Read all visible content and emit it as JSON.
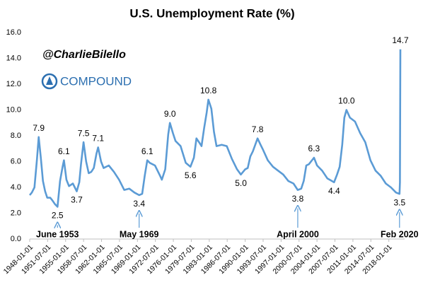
{
  "chart_data": {
    "type": "line",
    "title": "U.S. Unemployment Rate (%)",
    "handle": "@CharlieBilello",
    "brand": "COMPOUND",
    "color": "#5b9bd5",
    "x": [
      "1948-01-01",
      "1948-06-01",
      "1948-12-01",
      "1949-06-01",
      "1949-10-01",
      "1950-03-01",
      "1950-08-01",
      "1951-01-01",
      "1951-06-01",
      "1952-01-01",
      "1952-06-01",
      "1952-12-01",
      "1953-06-01",
      "1953-12-01",
      "1954-06-01",
      "1954-09-01",
      "1955-03-01",
      "1955-09-01",
      "1956-06-01",
      "1957-03-01",
      "1957-09-01",
      "1958-01-01",
      "1958-07-01",
      "1959-01-01",
      "1959-07-01",
      "1960-01-01",
      "1960-07-01",
      "1961-01-01",
      "1961-05-01",
      "1961-12-01",
      "1962-06-01",
      "1963-06-01",
      "1964-06-01",
      "1965-06-01",
      "1966-06-01",
      "1967-06-01",
      "1968-06-01",
      "1969-05-01",
      "1969-12-01",
      "1970-06-01",
      "1970-12-01",
      "1971-06-01",
      "1972-06-01",
      "1973-06-01",
      "1973-10-01",
      "1974-06-01",
      "1975-01-01",
      "1975-05-01",
      "1975-12-01",
      "1976-06-01",
      "1977-06-01",
      "1978-06-01",
      "1979-05-01",
      "1980-01-01",
      "1980-07-01",
      "1981-01-01",
      "1981-07-01",
      "1982-01-01",
      "1982-07-01",
      "1982-11-01",
      "1983-06-01",
      "1983-12-01",
      "1984-06-01",
      "1985-06-01",
      "1986-06-01",
      "1987-06-01",
      "1988-06-01",
      "1989-03-01",
      "1990-01-01",
      "1990-07-01",
      "1991-01-01",
      "1991-07-01",
      "1992-06-01",
      "1993-01-01",
      "1993-07-01",
      "1994-06-01",
      "1995-06-01",
      "1996-06-01",
      "1997-06-01",
      "1998-06-01",
      "1999-06-01",
      "2000-04-01",
      "2000-12-01",
      "2001-06-01",
      "2001-12-01",
      "2002-06-01",
      "2003-06-01",
      "2004-01-01",
      "2005-01-01",
      "2006-01-01",
      "2007-05-01",
      "2007-12-01",
      "2008-06-01",
      "2008-12-01",
      "2009-05-01",
      "2009-10-01",
      "2010-06-01",
      "2011-06-01",
      "2012-06-01",
      "2013-06-01",
      "2014-06-01",
      "2015-06-01",
      "2016-06-01",
      "2017-06-01",
      "2018-06-01",
      "2019-06-01",
      "2020-02-01",
      "2020-03-01",
      "2020-04-01"
    ],
    "values": [
      3.4,
      3.6,
      4.0,
      6.2,
      7.9,
      6.3,
      4.5,
      3.7,
      3.2,
      3.2,
      3.0,
      2.7,
      2.5,
      4.5,
      5.6,
      6.1,
      4.6,
      4.1,
      4.3,
      3.7,
      4.4,
      5.8,
      7.5,
      6.0,
      5.1,
      5.2,
      5.5,
      6.6,
      7.1,
      6.0,
      5.5,
      5.7,
      5.2,
      4.6,
      3.8,
      3.9,
      3.6,
      3.4,
      3.5,
      4.9,
      6.1,
      5.9,
      5.7,
      4.9,
      4.6,
      5.4,
      8.1,
      9.0,
      8.2,
      7.6,
      7.2,
      5.9,
      5.6,
      6.3,
      7.8,
      7.5,
      7.2,
      8.6,
      9.8,
      10.8,
      10.1,
      8.3,
      7.2,
      7.3,
      7.2,
      6.2,
      5.4,
      5.0,
      5.4,
      5.5,
      6.4,
      6.8,
      7.8,
      7.3,
      6.9,
      6.1,
      5.6,
      5.3,
      5.0,
      4.5,
      4.3,
      3.8,
      3.9,
      4.5,
      5.7,
      5.8,
      6.3,
      5.7,
      5.3,
      4.7,
      4.4,
      5.0,
      5.6,
      7.3,
      9.4,
      10.0,
      9.4,
      9.1,
      8.2,
      7.5,
      6.1,
      5.3,
      4.9,
      4.3,
      4.0,
      3.6,
      3.5,
      4.4,
      14.7
    ],
    "value_labels": [
      null,
      null,
      null,
      null,
      "7.9",
      null,
      null,
      null,
      null,
      null,
      null,
      null,
      "2.5",
      null,
      null,
      "6.1",
      null,
      null,
      null,
      "3.7",
      null,
      null,
      "7.5",
      null,
      null,
      null,
      null,
      null,
      "7.1",
      null,
      null,
      null,
      null,
      null,
      null,
      null,
      null,
      "3.4",
      null,
      null,
      "6.1",
      null,
      null,
      null,
      null,
      null,
      null,
      "9.0",
      null,
      null,
      null,
      null,
      "5.6",
      null,
      null,
      null,
      null,
      null,
      null,
      "10.8",
      null,
      null,
      null,
      null,
      null,
      null,
      null,
      "5.0",
      null,
      null,
      null,
      null,
      "7.8",
      null,
      null,
      null,
      null,
      null,
      null,
      null,
      null,
      "3.8",
      null,
      null,
      null,
      null,
      "6.3",
      null,
      null,
      null,
      "4.4",
      null,
      null,
      null,
      null,
      "10.0",
      null,
      null,
      null,
      null,
      null,
      null,
      null,
      null,
      null,
      null,
      "3.5",
      null,
      "14.7"
    ],
    "annotations": [
      {
        "text": "June 1953",
        "x": "1953-06-01"
      },
      {
        "text": "May 1969",
        "x": "1969-05-01"
      },
      {
        "text": "April 2000",
        "x": "2000-04-01"
      },
      {
        "text": "Feb 2020",
        "x": "2020-02-01"
      }
    ],
    "xlim": [
      "1948-01-01",
      "2020-04-01"
    ],
    "xticks": [
      "1948-01-01",
      "1951-07-01",
      "1955-01-01",
      "1958-07-01",
      "1962-01-01",
      "1965-07-01",
      "1969-01-01",
      "1972-07-01",
      "1976-01-01",
      "1979-07-01",
      "1983-01-01",
      "1986-07-01",
      "1990-01-01",
      "1993-07-01",
      "1997-01-01",
      "2000-07-01",
      "2004-01-01",
      "2007-07-01",
      "2011-01-01",
      "2014-07-01",
      "2018-01-01"
    ],
    "ylim": [
      0,
      16
    ],
    "yticks": [
      {
        "value": 0,
        "label": "0.0"
      },
      {
        "value": 2,
        "label": "2.0"
      },
      {
        "value": 4,
        "label": "4.0"
      },
      {
        "value": 6,
        "label": "6.0"
      },
      {
        "value": 8,
        "label": "8.0"
      },
      {
        "value": 10,
        "label": "10.0"
      },
      {
        "value": 12,
        "label": "12.0"
      },
      {
        "value": 14,
        "label": "14.0"
      },
      {
        "value": 16,
        "label": "16.0"
      }
    ],
    "grid": false
  }
}
